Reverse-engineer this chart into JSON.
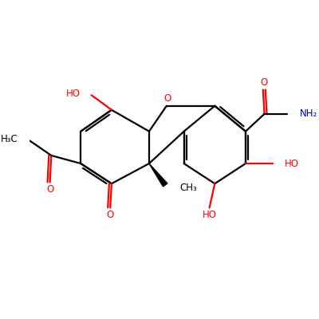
{
  "bg_color": "#ffffff",
  "bond_color": "#000000",
  "o_color": "#ff0000",
  "n_color": "#0000cc",
  "figsize": [
    4.0,
    4.0
  ],
  "dpi": 100,
  "xlim": [
    0,
    10
  ],
  "ylim": [
    0,
    10
  ]
}
